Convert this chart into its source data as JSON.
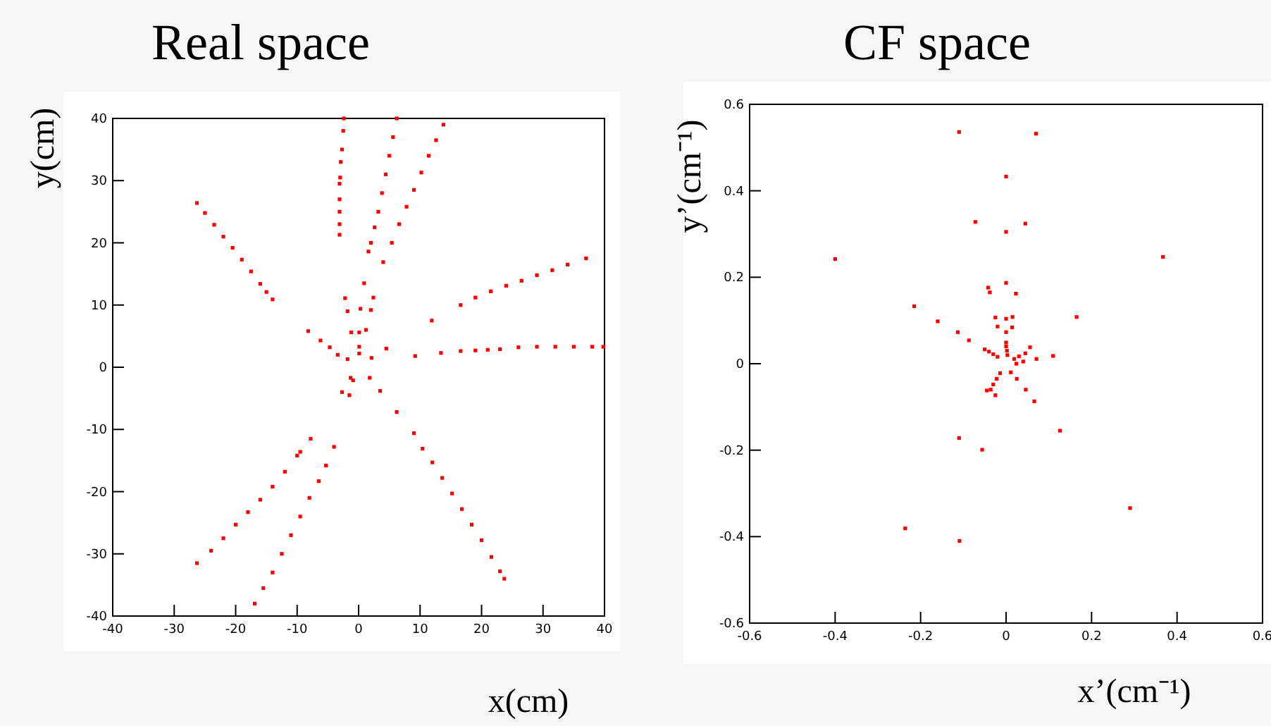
{
  "chart_data": [
    {
      "type": "scatter",
      "title": "Real space",
      "xlabel": "x(cm)",
      "ylabel": "y(cm)",
      "marker": "square",
      "color": "#ff0000",
      "xlim": [
        -40,
        40
      ],
      "ylim": [
        -40,
        40
      ],
      "xticks": [
        -40,
        -30,
        -20,
        -10,
        0,
        10,
        20,
        30,
        40
      ],
      "yticks": [
        -40,
        -30,
        -20,
        -10,
        0,
        10,
        20,
        30,
        40
      ],
      "x": [
        -26.3,
        -25,
        -23.5,
        -22,
        -20.5,
        -19,
        -17.5,
        -16,
        -15,
        -14,
        -2.4,
        -2.5,
        -2.7,
        -2.9,
        -3.0,
        -3.1,
        -3.1,
        -3.1,
        -3.1,
        -3.1,
        6.2,
        5.6,
        5,
        4.4,
        3.8,
        3.2,
        2.6,
        2.0,
        1.6,
        13.8,
        12.6,
        11.4,
        10.2,
        9,
        7.8,
        6.6,
        5.4,
        4,
        16.6,
        19,
        21.5,
        24,
        26.5,
        29,
        31.5,
        34,
        37,
        16.6,
        19,
        21,
        23,
        26,
        29,
        32,
        35,
        38,
        39.8,
        -26.3,
        -24,
        -22,
        -20,
        -18,
        -16,
        -14,
        -12,
        -10,
        -9.5,
        -16.9,
        -15.5,
        -14,
        -12.5,
        -11,
        -9.5,
        -8,
        -6.5,
        -5.3,
        10.4,
        12,
        13.6,
        15.2,
        16.8,
        18.4,
        20,
        21.6,
        23,
        23.7,
        -8.2,
        -6.2,
        -4.7,
        -3.4,
        -1.8,
        -2.2,
        -1.8,
        -1.2,
        0.1,
        1.2,
        0.3,
        0.9,
        2.4,
        2.0,
        0.1,
        0.1,
        2.1,
        4.5,
        9.2,
        11.9,
        13.4,
        -1.3,
        -0.9,
        1.8,
        -2.7,
        -1.5,
        3.5,
        6.2,
        9.0,
        -7.8,
        -4.0
      ],
      "values": [
        26.4,
        24.8,
        22.9,
        21,
        19.2,
        17.3,
        15.4,
        13.4,
        12.1,
        10.9,
        40,
        38,
        35,
        33,
        30.5,
        29.5,
        27,
        25,
        23,
        21.3,
        40,
        37,
        34,
        31,
        28,
        25,
        22.5,
        20,
        18.6,
        39,
        36.5,
        34,
        31.3,
        28.5,
        25.8,
        23,
        20,
        16.9,
        10,
        11.2,
        12.2,
        13.1,
        13.9,
        14.8,
        15.6,
        16.5,
        17.5,
        2.6,
        2.7,
        2.8,
        2.9,
        3.2,
        3.3,
        3.3,
        3.3,
        3.3,
        3.3,
        -31.5,
        -29.5,
        -27.5,
        -25.3,
        -23.3,
        -21.3,
        -19.2,
        -16.8,
        -14.2,
        -13.6,
        -38,
        -35.5,
        -33,
        -30,
        -27,
        -24,
        -21,
        -18.3,
        -15.8,
        -13.1,
        -15.3,
        -17.8,
        -20.3,
        -22.8,
        -25.3,
        -27.8,
        -30.5,
        -32.8,
        -34,
        5.8,
        4.3,
        3.2,
        2.0,
        1.3,
        11.1,
        9.0,
        5.6,
        5.6,
        6.0,
        9.4,
        13.5,
        11.2,
        9.2,
        3.3,
        2.2,
        1.5,
        3.0,
        1.8,
        7.5,
        2.3,
        -1.7,
        -2.1,
        -1.7,
        -4.0,
        -4.5,
        -3.8,
        -7.2,
        -10.6,
        -11.5,
        -12.8
      ]
    },
    {
      "type": "scatter",
      "title": "CF space",
      "xlabel": "x’(cm⁻¹)",
      "ylabel": "y’(cm⁻¹)",
      "marker": "square",
      "color": "#ff0000",
      "xlim": [
        -0.6,
        0.6
      ],
      "ylim": [
        -0.6,
        0.6
      ],
      "xticks": [
        -0.6,
        -0.4,
        -0.2,
        0,
        0.2,
        0.4,
        0.6
      ],
      "yticks": [
        -0.6,
        -0.4,
        -0.2,
        0,
        0.2,
        0.4,
        0.6
      ],
      "x": [
        -0.11,
        0.07,
        0,
        -0.072,
        0.045,
        0,
        -0.4,
        0.367,
        0,
        -0.042,
        -0.038,
        0.023,
        -0.215,
        0.165,
        -0.025,
        0,
        0.015,
        -0.16,
        -0.02,
        0.014,
        -0.113,
        0,
        -0.087,
        0.056,
        0.11,
        0.071,
        0,
        0,
        0.002,
        0.003,
        -0.05,
        -0.04,
        -0.03,
        -0.02,
        0.019,
        0.03,
        0.045,
        0.024,
        0.04,
        -0.014,
        -0.022,
        -0.03,
        -0.036,
        -0.045,
        -0.025,
        0.011,
        0.025,
        0.046,
        0.066,
        -0.11,
        -0.056,
        0.126,
        0.29,
        -0.236,
        -0.109
      ],
      "values": [
        0.536,
        0.532,
        0.433,
        0.328,
        0.324,
        0.305,
        0.242,
        0.247,
        0.187,
        0.176,
        0.165,
        0.162,
        0.133,
        0.108,
        0.107,
        0.104,
        0.108,
        0.098,
        0.086,
        0.084,
        0.073,
        0.073,
        0.054,
        0.038,
        0.018,
        0.011,
        0.049,
        0.04,
        0.03,
        0.02,
        0.033,
        0.028,
        0.022,
        0.016,
        0.011,
        0.017,
        0.024,
        0,
        0.005,
        -0.022,
        -0.035,
        -0.048,
        -0.06,
        -0.062,
        -0.073,
        -0.02,
        -0.035,
        -0.06,
        -0.087,
        -0.172,
        -0.199,
        -0.155,
        -0.334,
        -0.381,
        -0.41
      ]
    }
  ]
}
